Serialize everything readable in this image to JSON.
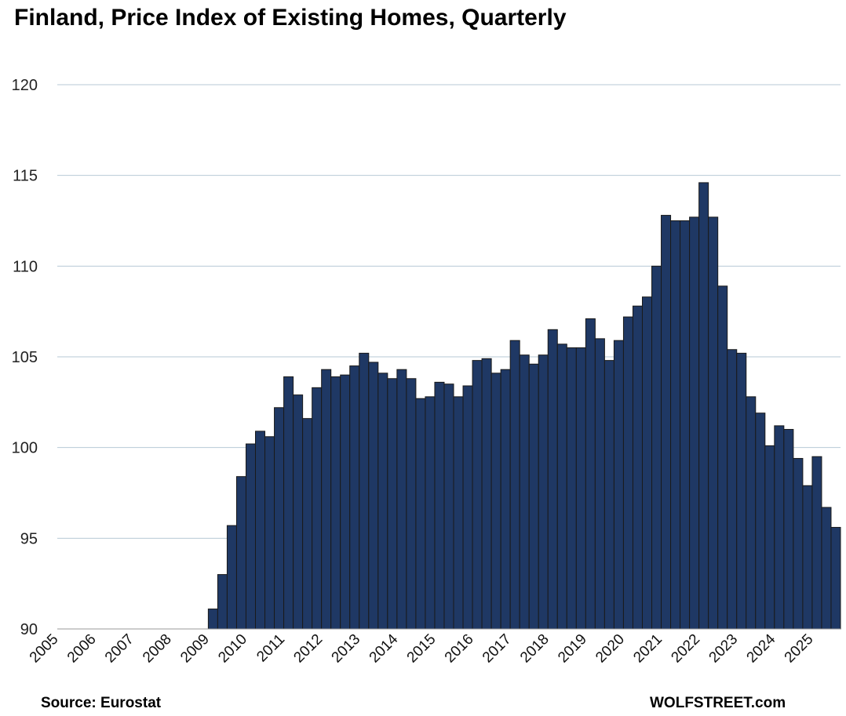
{
  "chart_data": {
    "type": "bar",
    "title": "Finland, Price Index of Existing Homes, Quarterly",
    "xlabel": "",
    "ylabel": "",
    "ylim": [
      90,
      120
    ],
    "yticks": [
      90,
      95,
      100,
      105,
      110,
      115,
      120
    ],
    "xlim_years": [
      2005,
      2025.75
    ],
    "xtick_labels": [
      "2005",
      "2006",
      "2007",
      "2008",
      "2009",
      "2010",
      "2011",
      "2012",
      "2013",
      "2014",
      "2015",
      "2016",
      "2017",
      "2018",
      "2019",
      "2020",
      "2021",
      "2022",
      "2023",
      "2024",
      "2025"
    ],
    "grid": true,
    "bar_color": "#1f3864",
    "start_quarter": "2009-Q1",
    "series": [
      {
        "name": "Price Index of Existing Homes",
        "values": [
          91.1,
          93.0,
          95.7,
          98.4,
          100.2,
          100.9,
          100.6,
          102.2,
          103.9,
          102.9,
          101.6,
          103.3,
          104.3,
          103.9,
          104.0,
          104.5,
          105.2,
          104.7,
          104.1,
          103.8,
          104.3,
          103.8,
          102.7,
          102.8,
          103.6,
          103.5,
          102.8,
          103.4,
          104.8,
          104.9,
          104.1,
          104.3,
          105.9,
          105.1,
          104.6,
          105.1,
          106.5,
          105.7,
          105.5,
          105.5,
          107.1,
          106.0,
          104.8,
          105.9,
          107.2,
          107.8,
          108.3,
          110.0,
          112.8,
          112.5,
          112.5,
          112.7,
          114.6,
          112.7,
          108.9,
          105.4,
          105.2,
          102.8,
          101.9,
          100.1,
          101.2,
          101.0,
          99.4,
          97.9,
          99.5,
          96.7,
          95.6
        ]
      }
    ]
  },
  "footer": {
    "source": "Source: Eurostat",
    "brand": "WOLFSTREET.com"
  }
}
